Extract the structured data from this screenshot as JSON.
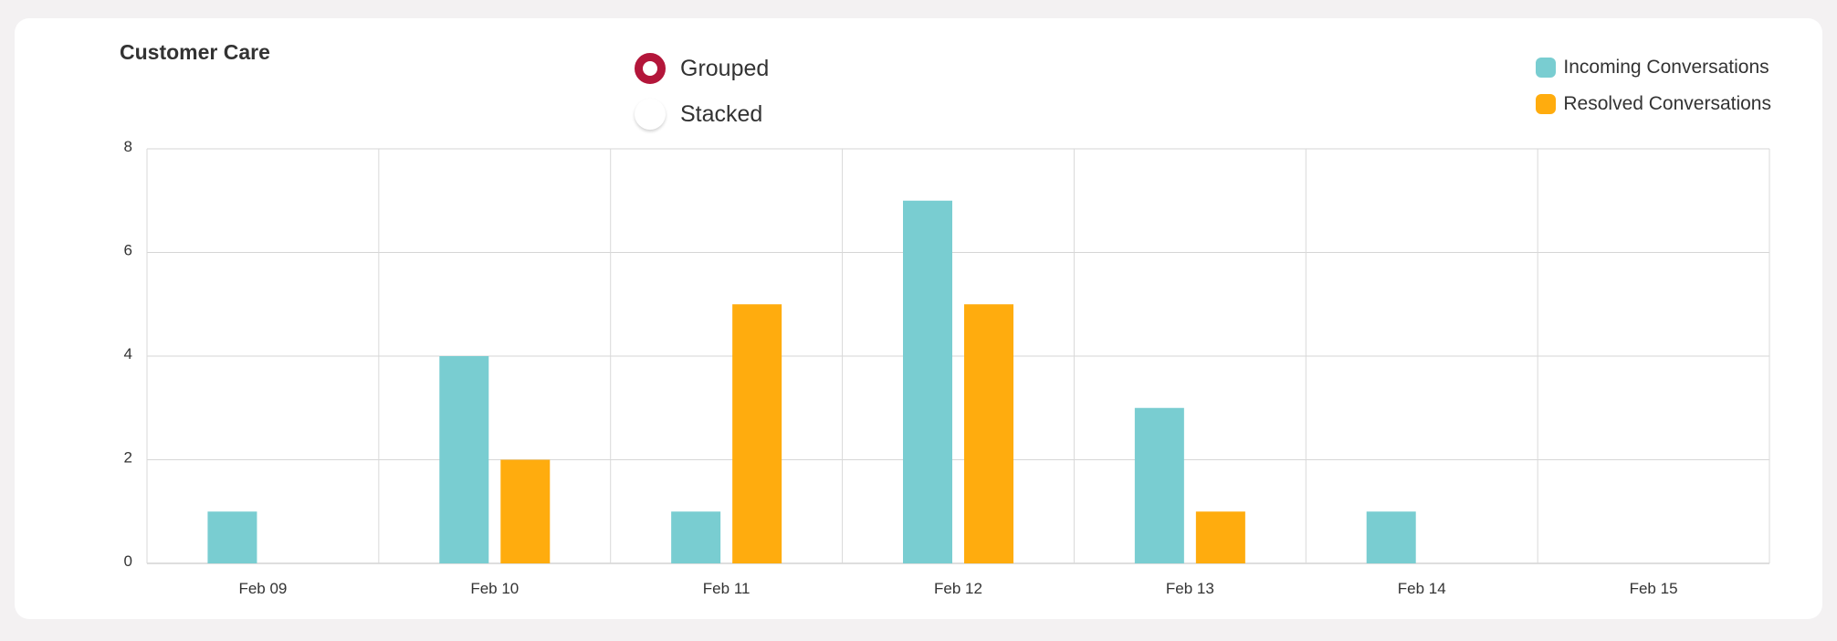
{
  "card": {
    "title": "Customer Care"
  },
  "mode_toggle": {
    "options": [
      {
        "label": "Grouped",
        "checked": true
      },
      {
        "label": "Stacked",
        "checked": false
      }
    ]
  },
  "colors": {
    "incoming": "#79cdd1",
    "resolved": "#ffac0e",
    "radio_accent": "#b3163a"
  },
  "chart_data": {
    "type": "bar",
    "mode": "grouped",
    "title": "Customer Care",
    "xlabel": "",
    "ylabel": "",
    "categories": [
      "Feb 09",
      "Feb 10",
      "Feb 11",
      "Feb 12",
      "Feb 13",
      "Feb 14",
      "Feb 15"
    ],
    "series": [
      {
        "name": "Incoming Conversations",
        "color": "#79cdd1",
        "values": [
          1,
          4,
          1,
          7,
          3,
          1,
          0
        ]
      },
      {
        "name": "Resolved Conversations",
        "color": "#ffac0e",
        "values": [
          0,
          2,
          5,
          5,
          1,
          0,
          0
        ]
      }
    ],
    "ylim": [
      0,
      8
    ],
    "yticks": [
      0,
      2,
      4,
      6,
      8
    ],
    "grid": true,
    "legend_position": "top-right"
  }
}
